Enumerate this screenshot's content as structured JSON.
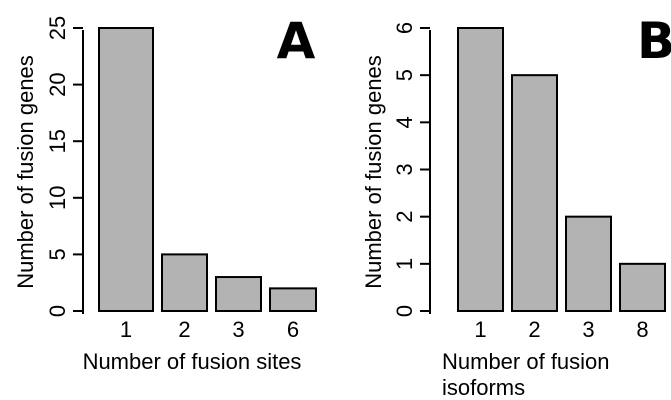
{
  "chart_data": [
    {
      "type": "bar",
      "panel_label": "A",
      "categories": [
        "1",
        "2",
        "3",
        "6"
      ],
      "values": [
        25,
        5,
        3,
        2
      ],
      "xlabel": "Number of fusion sites",
      "ylabel": "Number of fusion genes",
      "ylim": [
        0,
        25
      ],
      "yticks": [
        "0",
        "5",
        "10",
        "15",
        "20",
        "25"
      ],
      "bar_color": "#b3b3b3",
      "grid": false
    },
    {
      "type": "bar",
      "panel_label": "B",
      "categories": [
        "1",
        "2",
        "3",
        "8"
      ],
      "values": [
        6,
        5,
        2,
        1
      ],
      "xlabel_lines": [
        "Number of fusion",
        "isoforms"
      ],
      "ylabel": "Number of fusion genes",
      "ylim": [
        0,
        6
      ],
      "yticks": [
        "0",
        "1",
        "2",
        "3",
        "4",
        "5",
        "6"
      ],
      "bar_color": "#b3b3b3",
      "grid": false
    }
  ]
}
